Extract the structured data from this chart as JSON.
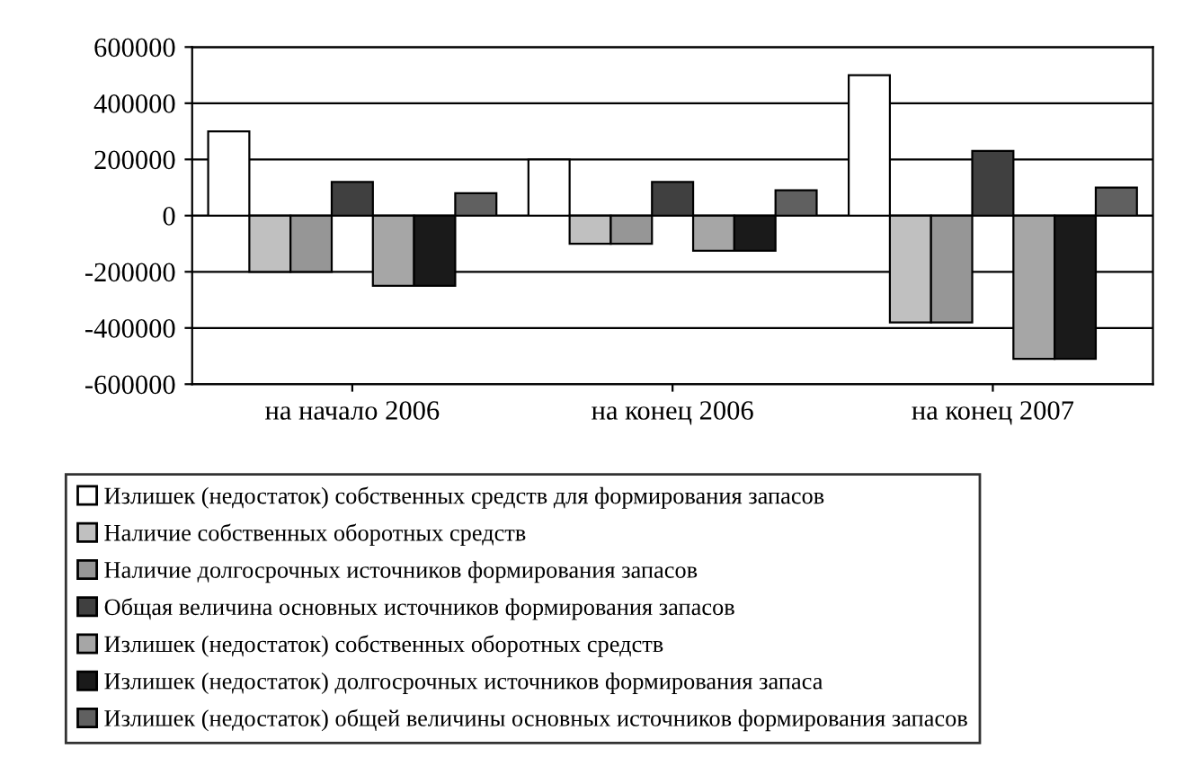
{
  "chart_data": {
    "type": "bar",
    "categories": [
      "на начало 2006",
      "на конец 2006",
      "на конец 2007"
    ],
    "series": [
      {
        "name": "Излишек (недостаток) собственных средств для формирования запасов",
        "color": "#ffffff",
        "values": [
          300000,
          200000,
          500000
        ]
      },
      {
        "name": "Наличие собственных оборотных средств",
        "color": "#c0c0c0",
        "values": [
          -200000,
          -100000,
          -380000
        ]
      },
      {
        "name": "Наличие долгосрочных источников формирования запасов",
        "color": "#969696",
        "values": [
          -200000,
          -100000,
          -380000
        ]
      },
      {
        "name": "Общая величина основных источников формирования запасов",
        "color": "#404040",
        "values": [
          120000,
          120000,
          230000
        ]
      },
      {
        "name": "Излишек (недостаток) собственных оборотных средств",
        "color": "#a6a6a6",
        "values": [
          -250000,
          -125000,
          -510000
        ]
      },
      {
        "name": "Излишек (недостаток) долгосрочных источников формирования запаса",
        "color": "#1a1a1a",
        "values": [
          -250000,
          -125000,
          -510000
        ]
      },
      {
        "name": "Излишек (недостаток) общей величины основных источников формирования запасов",
        "color": "#606060",
        "values": [
          80000,
          90000,
          100000
        ]
      }
    ],
    "ylim": [
      -600000,
      600000
    ],
    "yticks": [
      -600000,
      -400000,
      -200000,
      0,
      200000,
      400000,
      600000
    ],
    "grid": "y",
    "legend": "bottom"
  }
}
